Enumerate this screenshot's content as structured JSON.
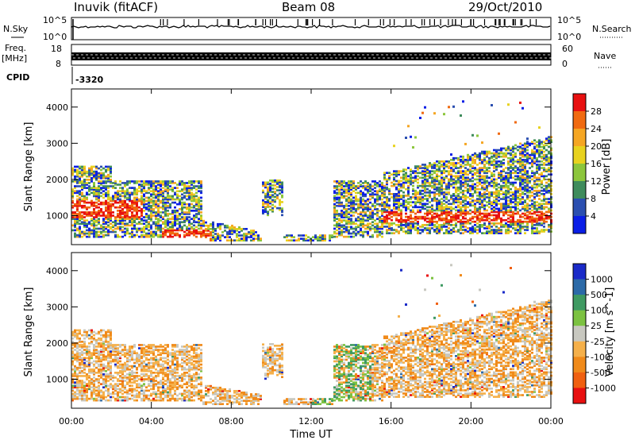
{
  "header": {
    "station": "Inuvik (fitACF)",
    "beam": "Beam 08",
    "date": "29/Oct/2010"
  },
  "nsky_panel": {
    "left_label": "N.Sky",
    "right_label": "N.Search",
    "left_ticks": [
      "10^5",
      "10^0"
    ],
    "right_ticks": [
      "10^5",
      "10^0"
    ]
  },
  "freq_panel": {
    "left_label_1": "Freq.",
    "left_label_2": "[MHz]",
    "right_label": "Nave",
    "left_ticks": [
      "18",
      "8"
    ],
    "right_ticks": [
      "60",
      "0"
    ]
  },
  "cpid": {
    "label": "CPID",
    "value": "-3320"
  },
  "chart_data": [
    {
      "type": "heatmap",
      "name": "power",
      "ylabel": "Slant Range [km]",
      "ylim": [
        200,
        4500
      ],
      "yticks": [
        "1000",
        "2000",
        "3000",
        "4000"
      ],
      "colorbar_label": "Power [dB]",
      "colorbar_ticks": [
        "4",
        "8",
        "12",
        "16",
        "20",
        "24",
        "28"
      ],
      "colors": [
        "#0a1ee6",
        "#2b4fb0",
        "#3f8c5c",
        "#8cc63c",
        "#e8d21e",
        "#f5a623",
        "#f06a10",
        "#e81010"
      ]
    },
    {
      "type": "heatmap",
      "name": "velocity",
      "ylabel": "Slant Range [km]",
      "ylim": [
        200,
        4500
      ],
      "yticks": [
        "1000",
        "2000",
        "3000",
        "4000"
      ],
      "colorbar_label": "Velocity [m s^-1]",
      "colorbar_ticks": [
        "1000",
        "500",
        "100",
        "25",
        "-25",
        "-100",
        "-500",
        "-1000"
      ],
      "colors": [
        "#1a2ac8",
        "#2c6aa8",
        "#3f9a62",
        "#7cc241",
        "#c8c8c0",
        "#f5b04a",
        "#f08a1a",
        "#f06010",
        "#e81010"
      ]
    }
  ],
  "xaxis": {
    "label": "Time UT",
    "ticks": [
      "00:00",
      "04:00",
      "08:00",
      "12:00",
      "16:00",
      "20:00",
      "00:00"
    ]
  },
  "legend_dots": {
    "nsearch_line": "dotted",
    "nave_line": "dotted"
  }
}
